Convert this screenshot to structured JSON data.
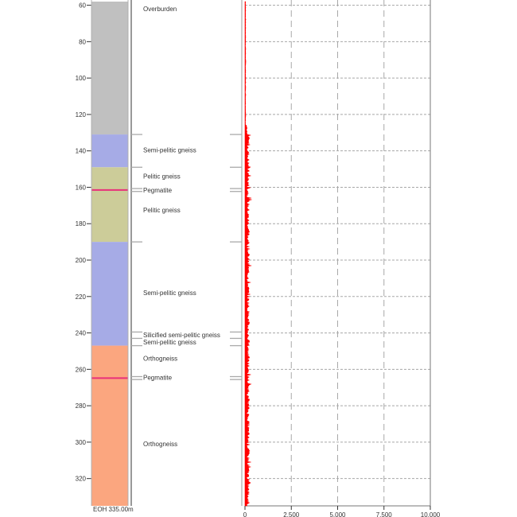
{
  "depth_axis": {
    "ticks": [
      60,
      80,
      100,
      120,
      140,
      160,
      180,
      200,
      220,
      240,
      260,
      280,
      300,
      320
    ],
    "min": 58,
    "max": 335
  },
  "lithology_colors": {
    "overburden": "#c0c0c0",
    "semi_pelitic": "#a6abe6",
    "pelitic": "#cccc99",
    "orthogneiss": "#fba67f",
    "pegmatite_line": "#e8307a"
  },
  "intervals": [
    {
      "from": 58,
      "to": 131,
      "lith": "overburden"
    },
    {
      "from": 131,
      "to": 149,
      "lith": "semi_pelitic"
    },
    {
      "from": 149,
      "to": 190,
      "lith": "pelitic"
    },
    {
      "from": 190,
      "to": 247,
      "lith": "semi_pelitic"
    },
    {
      "from": 247,
      "to": 335,
      "lith": "orthogneiss"
    }
  ],
  "pegmatite_depths": [
    161.5,
    264.8
  ],
  "labels": [
    {
      "depth": 62,
      "text": "Overburden"
    },
    {
      "depth": 139.5,
      "text": "Semi-pelitic gneiss"
    },
    {
      "depth": 154,
      "text": "Pelitic gneiss"
    },
    {
      "depth": 161.5,
      "text": "Pegmatite"
    },
    {
      "depth": 172.5,
      "text": "Pelitic gneiss"
    },
    {
      "depth": 218,
      "text": "Semi-pelitic gneiss"
    },
    {
      "depth": 241,
      "text": "Silicified semi-pelitic gneiss"
    },
    {
      "depth": 245,
      "text": "Semi-pelitic gneiss"
    },
    {
      "depth": 254,
      "text": "Orthogneiss"
    },
    {
      "depth": 264.5,
      "text": "Pegmatite"
    },
    {
      "depth": 301,
      "text": "Orthogneiss"
    }
  ],
  "boundary_marks": [
    131,
    149,
    160.7,
    162.3,
    190,
    239.5,
    243,
    247,
    264,
    265.6
  ],
  "eoh_label": "EOH 335.00m",
  "signal_axis": {
    "ticks": [
      "0",
      "2,500",
      "5,000",
      "7,500",
      "10,000"
    ],
    "max": 10000
  },
  "signal_color": "#ff0000"
}
